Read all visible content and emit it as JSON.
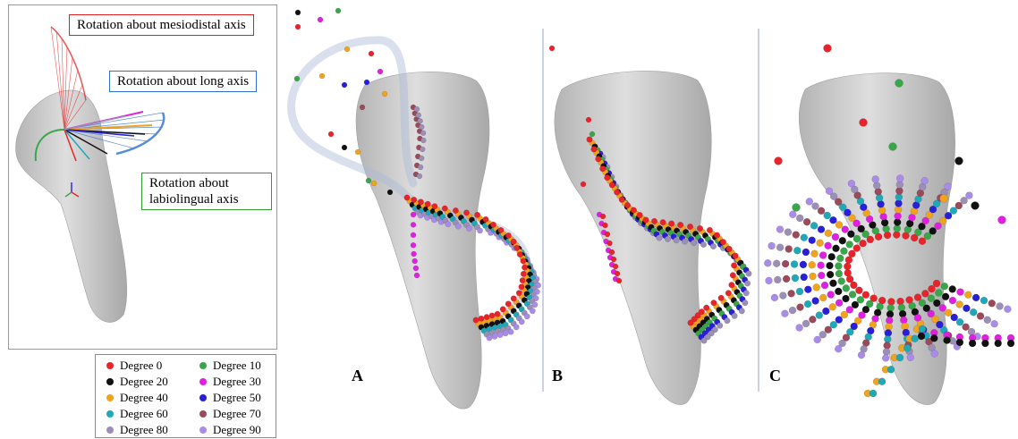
{
  "labels": {
    "mesiodistal": "Rotation about mesiodistal  axis",
    "long": "Rotation about long axis",
    "labiolingual": "Rotation about labiolingual  axis"
  },
  "panels": [
    "A",
    "B",
    "C"
  ],
  "legend": [
    {
      "label": "Degree 0",
      "color": "#e8242a"
    },
    {
      "label": "Degree 10",
      "color": "#3aa64a"
    },
    {
      "label": "Degree 20",
      "color": "#111111"
    },
    {
      "label": "Degree 30",
      "color": "#e020e0"
    },
    {
      "label": "Degree 40",
      "color": "#f0a31c"
    },
    {
      "label": "Degree 50",
      "color": "#2a1fd8"
    },
    {
      "label": "Degree 60",
      "color": "#1ea8b8"
    },
    {
      "label": "Degree 70",
      "color": "#9a4a5a"
    },
    {
      "label": "Degree 80",
      "color": "#9b8fb5"
    },
    {
      "label": "Degree 90",
      "color": "#a98ce8"
    }
  ],
  "colors": {
    "mesiodistal_axis": "#e02020",
    "long_axis": "#2f6fd0",
    "labiolingual_axis": "#2fa02f",
    "tooth": "#c8c8c8",
    "trajectory_band": "#aab8d8"
  }
}
